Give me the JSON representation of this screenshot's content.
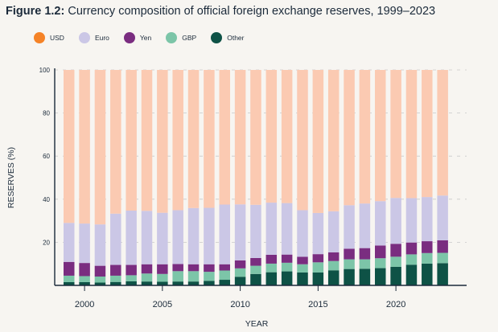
{
  "title": {
    "prefix": "Figure 1.2:",
    "text": " Currency composition of official foreign exchange reserves, 1999–2023"
  },
  "chart_data": {
    "type": "bar",
    "stacked": true,
    "xlabel": "YEAR",
    "ylabel": "RESERVES (%)",
    "ylim": [
      0,
      100
    ],
    "yticks": [
      "0",
      "20",
      "40",
      "60",
      "80",
      "100"
    ],
    "xticks": [
      "2000",
      "2005",
      "2010",
      "2015",
      "2020"
    ],
    "legend_position": "top-left",
    "grid": true,
    "categories": [
      1999,
      2000,
      2001,
      2002,
      2003,
      2004,
      2005,
      2006,
      2007,
      2008,
      2009,
      2010,
      2011,
      2012,
      2013,
      2014,
      2015,
      2016,
      2017,
      2018,
      2019,
      2020,
      2021,
      2022,
      2023
    ],
    "series": [
      {
        "name": "Other",
        "color": "#0e5246",
        "values": [
          1.5,
          1.5,
          1.3,
          1.6,
          1.9,
          1.8,
          1.7,
          1.8,
          1.8,
          2.1,
          2.6,
          4.0,
          5.3,
          6.1,
          6.5,
          6.0,
          6.0,
          7.0,
          7.6,
          7.7,
          8.0,
          8.6,
          9.6,
          10.1,
          10.3
        ]
      },
      {
        "name": "GBP",
        "color": "#7cc5a8",
        "values": [
          3.0,
          2.8,
          2.8,
          2.9,
          2.8,
          3.7,
          3.6,
          4.8,
          4.8,
          4.2,
          4.3,
          3.9,
          3.8,
          4.0,
          4.0,
          3.8,
          4.7,
          4.3,
          4.5,
          4.4,
          4.6,
          4.7,
          4.8,
          4.9,
          4.8
        ]
      },
      {
        "name": "Yen",
        "color": "#7a2d80",
        "values": [
          6.4,
          6.1,
          5.0,
          5.0,
          4.8,
          4.3,
          4.5,
          3.3,
          3.2,
          3.5,
          2.9,
          3.7,
          3.6,
          4.1,
          3.8,
          3.5,
          3.8,
          4.0,
          4.9,
          5.2,
          5.9,
          6.0,
          5.5,
          5.5,
          5.8
        ]
      },
      {
        "name": "Euro",
        "color": "#cbc7e6",
        "values": [
          18.1,
          18.3,
          19.2,
          23.8,
          25.2,
          24.8,
          23.9,
          25.0,
          26.1,
          26.2,
          27.7,
          26.0,
          24.7,
          24.2,
          23.9,
          21.6,
          19.1,
          19.1,
          20.2,
          20.7,
          20.6,
          21.3,
          20.6,
          20.5,
          20.8
        ]
      },
      {
        "name": "USD",
        "color": "#fbcab2",
        "values": [
          71.0,
          71.3,
          71.7,
          66.7,
          65.3,
          65.4,
          66.3,
          65.1,
          64.1,
          64.0,
          62.5,
          62.4,
          62.6,
          61.6,
          61.8,
          65.1,
          66.4,
          65.6,
          62.8,
          62.0,
          60.9,
          59.4,
          59.5,
          59.0,
          58.3
        ]
      }
    ],
    "legend": [
      {
        "label": "USD",
        "color": "#f58327"
      },
      {
        "label": "Euro",
        "color": "#cbc7e6"
      },
      {
        "label": "Yen",
        "color": "#7a2d80"
      },
      {
        "label": "GBP",
        "color": "#7cc5a8"
      },
      {
        "label": "Other",
        "color": "#0e5246"
      }
    ]
  }
}
